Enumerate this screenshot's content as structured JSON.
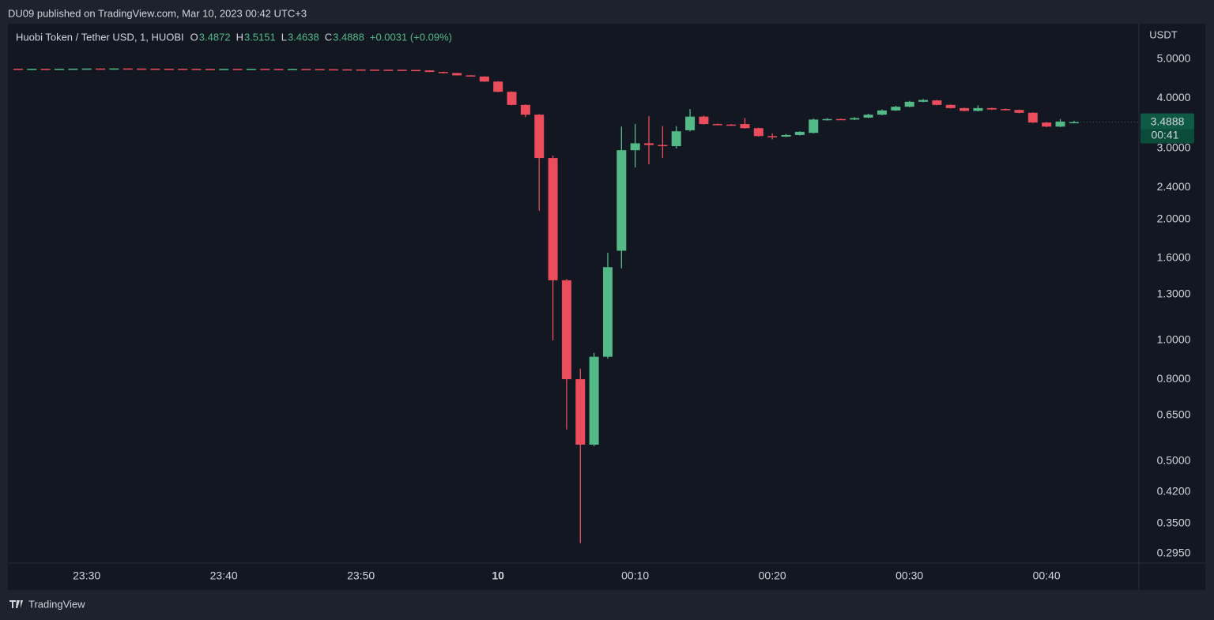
{
  "header": {
    "text": "DU09 published on TradingView.com, Mar 10, 2023 00:42 UTC+3"
  },
  "footer": {
    "brand": "TradingView"
  },
  "chart_data": {
    "type": "candlestick",
    "title": "Huobi Token / Tether USD, 1, HUOBI",
    "ohlc_letters": [
      "O",
      "H",
      "L",
      "C"
    ],
    "change_label": "+0.0031 (+0.09%)",
    "y_axis_label": "USDT",
    "countdown": "00:41",
    "up_color": "#53b987",
    "down_color": "#eb4d5c",
    "log_scale": true,
    "grid": false,
    "categories": [
      null,
      null,
      null,
      null,
      null,
      "23:30",
      null,
      null,
      null,
      null,
      null,
      null,
      null,
      null,
      null,
      "23:40",
      null,
      null,
      null,
      null,
      null,
      null,
      null,
      null,
      null,
      "23:50",
      null,
      null,
      null,
      null,
      null,
      null,
      null,
      null,
      null,
      "10",
      null,
      null,
      null,
      null,
      null,
      null,
      null,
      null,
      null,
      "00:10",
      null,
      null,
      null,
      null,
      null,
      null,
      null,
      null,
      null,
      "00:20",
      null,
      null,
      null,
      null,
      null,
      null,
      null,
      null,
      null,
      "00:30",
      null,
      null,
      null,
      null,
      null,
      null,
      null,
      null,
      null,
      "00:40",
      null,
      null
    ],
    "open": [
      4.735,
      4.73,
      4.733,
      4.731,
      4.735,
      4.738,
      4.742,
      4.74,
      4.744,
      4.741,
      4.738,
      4.736,
      4.735,
      4.733,
      4.73,
      4.728,
      4.731,
      4.729,
      4.733,
      4.73,
      4.728,
      4.729,
      4.726,
      4.722,
      4.72,
      4.716,
      4.712,
      4.71,
      4.708,
      4.703,
      4.69,
      4.65,
      4.62,
      4.56,
      4.53,
      4.4,
      4.15,
      3.85,
      3.64,
      2.84,
      1.41,
      0.8,
      0.55,
      0.91,
      1.67,
      2.97,
      3.09,
      3.06,
      3.04,
      3.33,
      3.6,
      3.45,
      3.44,
      3.45,
      3.37,
      3.22,
      3.21,
      3.24,
      3.28,
      3.53,
      3.55,
      3.54,
      3.58,
      3.64,
      3.73,
      3.81,
      3.92,
      3.95,
      3.85,
      3.78,
      3.72,
      3.78,
      3.76,
      3.74,
      3.68,
      3.48,
      3.4,
      3.4872
    ],
    "high": [
      4.737,
      4.735,
      4.735,
      4.737,
      4.74,
      4.744,
      4.744,
      4.746,
      4.746,
      4.743,
      4.74,
      4.738,
      4.737,
      4.735,
      4.732,
      4.733,
      4.733,
      4.735,
      4.735,
      4.732,
      4.731,
      4.731,
      4.728,
      4.724,
      4.722,
      4.718,
      4.714,
      4.712,
      4.71,
      4.705,
      4.695,
      4.655,
      4.625,
      4.565,
      4.535,
      4.41,
      4.16,
      3.86,
      3.65,
      2.88,
      1.42,
      0.85,
      0.93,
      1.65,
      3.4,
      3.45,
      3.61,
      3.41,
      3.41,
      3.76,
      3.62,
      3.46,
      3.45,
      3.57,
      3.38,
      3.27,
      3.26,
      3.31,
      3.56,
      3.57,
      3.56,
      3.59,
      3.66,
      3.75,
      3.83,
      3.94,
      3.98,
      3.96,
      3.86,
      3.79,
      3.84,
      3.79,
      3.77,
      3.75,
      3.69,
      3.49,
      3.55,
      3.5151
    ],
    "low": [
      4.728,
      4.728,
      4.729,
      4.729,
      4.733,
      4.736,
      4.738,
      4.738,
      4.739,
      4.736,
      4.734,
      4.733,
      4.731,
      4.728,
      4.726,
      4.726,
      4.727,
      4.727,
      4.728,
      4.726,
      4.726,
      4.724,
      4.72,
      4.718,
      4.714,
      4.71,
      4.708,
      4.706,
      4.701,
      4.685,
      4.645,
      4.615,
      4.555,
      4.525,
      4.395,
      4.14,
      3.84,
      3.59,
      2.1,
      1.0,
      0.6,
      0.313,
      0.545,
      0.9,
      1.51,
      2.69,
      2.74,
      2.84,
      3.0,
      3.31,
      3.44,
      3.43,
      3.42,
      3.36,
      3.21,
      3.16,
      3.2,
      3.23,
      3.27,
      3.52,
      3.53,
      3.53,
      3.57,
      3.63,
      3.72,
      3.8,
      3.91,
      3.84,
      3.77,
      3.71,
      3.71,
      3.74,
      3.73,
      3.67,
      3.47,
      3.39,
      3.39,
      3.4638
    ],
    "close": [
      4.73,
      4.733,
      4.731,
      4.735,
      4.738,
      4.742,
      4.74,
      4.744,
      4.741,
      4.738,
      4.736,
      4.735,
      4.733,
      4.73,
      4.728,
      4.731,
      4.729,
      4.733,
      4.73,
      4.728,
      4.729,
      4.726,
      4.722,
      4.72,
      4.716,
      4.712,
      4.71,
      4.708,
      4.703,
      4.69,
      4.65,
      4.62,
      4.56,
      4.53,
      4.4,
      4.15,
      3.85,
      3.64,
      2.84,
      1.41,
      0.8,
      0.55,
      0.91,
      1.52,
      2.97,
      3.09,
      3.06,
      3.04,
      3.31,
      3.6,
      3.45,
      3.44,
      3.43,
      3.37,
      3.22,
      3.2,
      3.24,
      3.3,
      3.54,
      3.55,
      3.54,
      3.57,
      3.64,
      3.73,
      3.81,
      3.92,
      3.96,
      3.85,
      3.78,
      3.72,
      3.78,
      3.75,
      3.74,
      3.68,
      3.48,
      3.4,
      3.5,
      3.4888
    ],
    "ylim": [
      0.279,
      6.13
    ],
    "yticks": [
      {
        "value": 5,
        "label": "5.0000"
      },
      {
        "value": 4,
        "label": "4.0000"
      },
      {
        "value": 3,
        "label": "3.0000"
      },
      {
        "value": 2.4,
        "label": "2.4000"
      },
      {
        "value": 2,
        "label": "2.0000"
      },
      {
        "value": 1.6,
        "label": "1.6000"
      },
      {
        "value": 1.3,
        "label": "1.3000"
      },
      {
        "value": 1,
        "label": "1.0000"
      },
      {
        "value": 0.8,
        "label": "0.8000"
      },
      {
        "value": 0.65,
        "label": "0.6500"
      },
      {
        "value": 0.5,
        "label": "0.5000"
      },
      {
        "value": 0.42,
        "label": "0.4200"
      },
      {
        "value": 0.35,
        "label": "0.3500"
      },
      {
        "value": 0.295,
        "label": "0.2950"
      }
    ]
  }
}
